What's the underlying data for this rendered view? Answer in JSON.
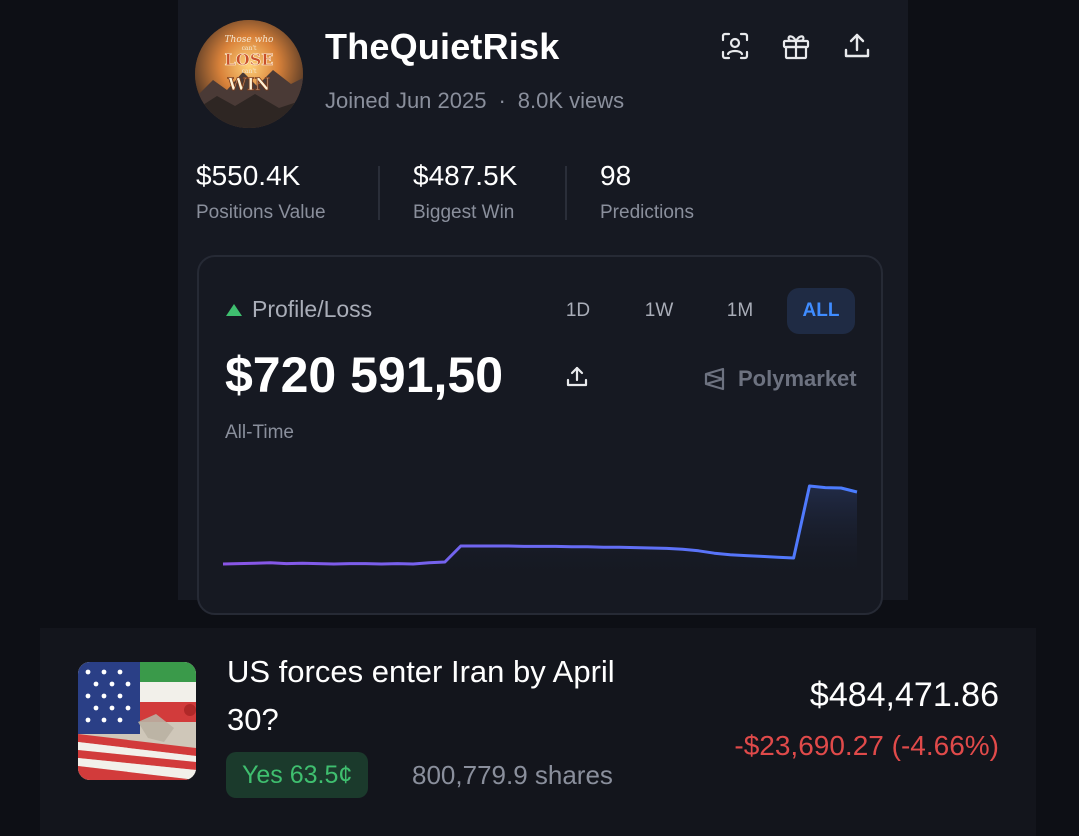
{
  "profile": {
    "username": "TheQuietRisk",
    "joined": "Joined Jun 2025",
    "views": "8.0K views",
    "avatar_text": {
      "line1": "Those who",
      "line2": "can't",
      "line3": "LOSE",
      "line4": "can't",
      "line5": "WIN"
    },
    "header_icons": [
      "face-scan-icon",
      "gift-icon",
      "share-icon"
    ]
  },
  "stats": [
    {
      "value": "$550.4K",
      "label": "Positions Value"
    },
    {
      "value": "$487.5K",
      "label": "Biggest Win"
    },
    {
      "value": "98",
      "label": "Predictions"
    }
  ],
  "pl": {
    "title": "Profile/Loss",
    "amount": "$720 591,50",
    "period": "All-Time",
    "brand": "Polymarket",
    "ranges": [
      "1D",
      "1W",
      "1M",
      "ALL"
    ],
    "active_range": "ALL",
    "up_color": "#3fbf6f"
  },
  "chart_data": {
    "type": "line",
    "title": "",
    "xlabel": "",
    "ylabel": "",
    "x": [
      0,
      1,
      2,
      3,
      4,
      5,
      6,
      7,
      8,
      9,
      10,
      11,
      12,
      13,
      14,
      15,
      16,
      17,
      18,
      19,
      20,
      21,
      22,
      23,
      24,
      25,
      26,
      27,
      28,
      29,
      30,
      31,
      32,
      33,
      34,
      35,
      36,
      37,
      38,
      39,
      40
    ],
    "values": [
      5,
      6,
      7,
      8,
      6,
      7,
      6,
      5,
      6,
      6,
      5,
      6,
      5,
      8,
      10,
      50,
      50,
      50,
      50,
      49,
      49,
      49,
      48,
      48,
      47,
      47,
      46,
      45,
      44,
      42,
      38,
      32,
      28,
      26,
      24,
      22,
      20,
      200,
      196,
      195,
      185
    ],
    "ylim": [
      0,
      210
    ],
    "grid": false,
    "line_gradient": [
      "#8a55e6",
      "#4a7dff"
    ]
  },
  "position": {
    "market_title": "US forces enter Iran by April 30?",
    "outcome": "Yes 63.5¢",
    "shares": "800,779.9 shares",
    "value": "$484,471.86",
    "change": "-$23,690.27 (-4.66%)",
    "change_color": "#e04a4a",
    "outcome_color": "#3fbf6f"
  }
}
